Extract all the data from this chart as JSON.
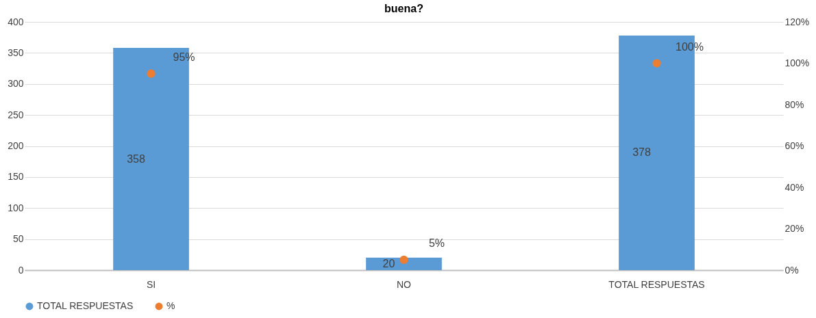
{
  "chart_data": {
    "type": "bar",
    "title": "buena?",
    "categories": [
      "SI",
      "NO",
      "TOTAL RESPUESTAS"
    ],
    "series": [
      {
        "name": "TOTAL RESPUESTAS",
        "color": "#5b9bd5",
        "values": [
          358,
          20,
          378
        ],
        "data_labels": true
      },
      {
        "name": "%",
        "type": "scatter",
        "axis": "y2",
        "color": "#ed7d31",
        "values": [
          95,
          5,
          100
        ],
        "value_labels": [
          "95%",
          "5%",
          "100%"
        ],
        "marker": "circle"
      }
    ],
    "ylim": [
      0,
      400
    ],
    "yticks": [
      0,
      50,
      100,
      150,
      200,
      250,
      300,
      350,
      400
    ],
    "y2lim": [
      0,
      120
    ],
    "y2ticks": [
      {
        "value": 0,
        "label": "0%"
      },
      {
        "value": 20,
        "label": "20%"
      },
      {
        "value": 40,
        "label": "40%"
      },
      {
        "value": 60,
        "label": "60%"
      },
      {
        "value": 80,
        "label": "80%"
      },
      {
        "value": 100,
        "label": "100%"
      },
      {
        "value": 120,
        "label": "120%"
      }
    ],
    "grid": "y",
    "legend": "bottom"
  }
}
